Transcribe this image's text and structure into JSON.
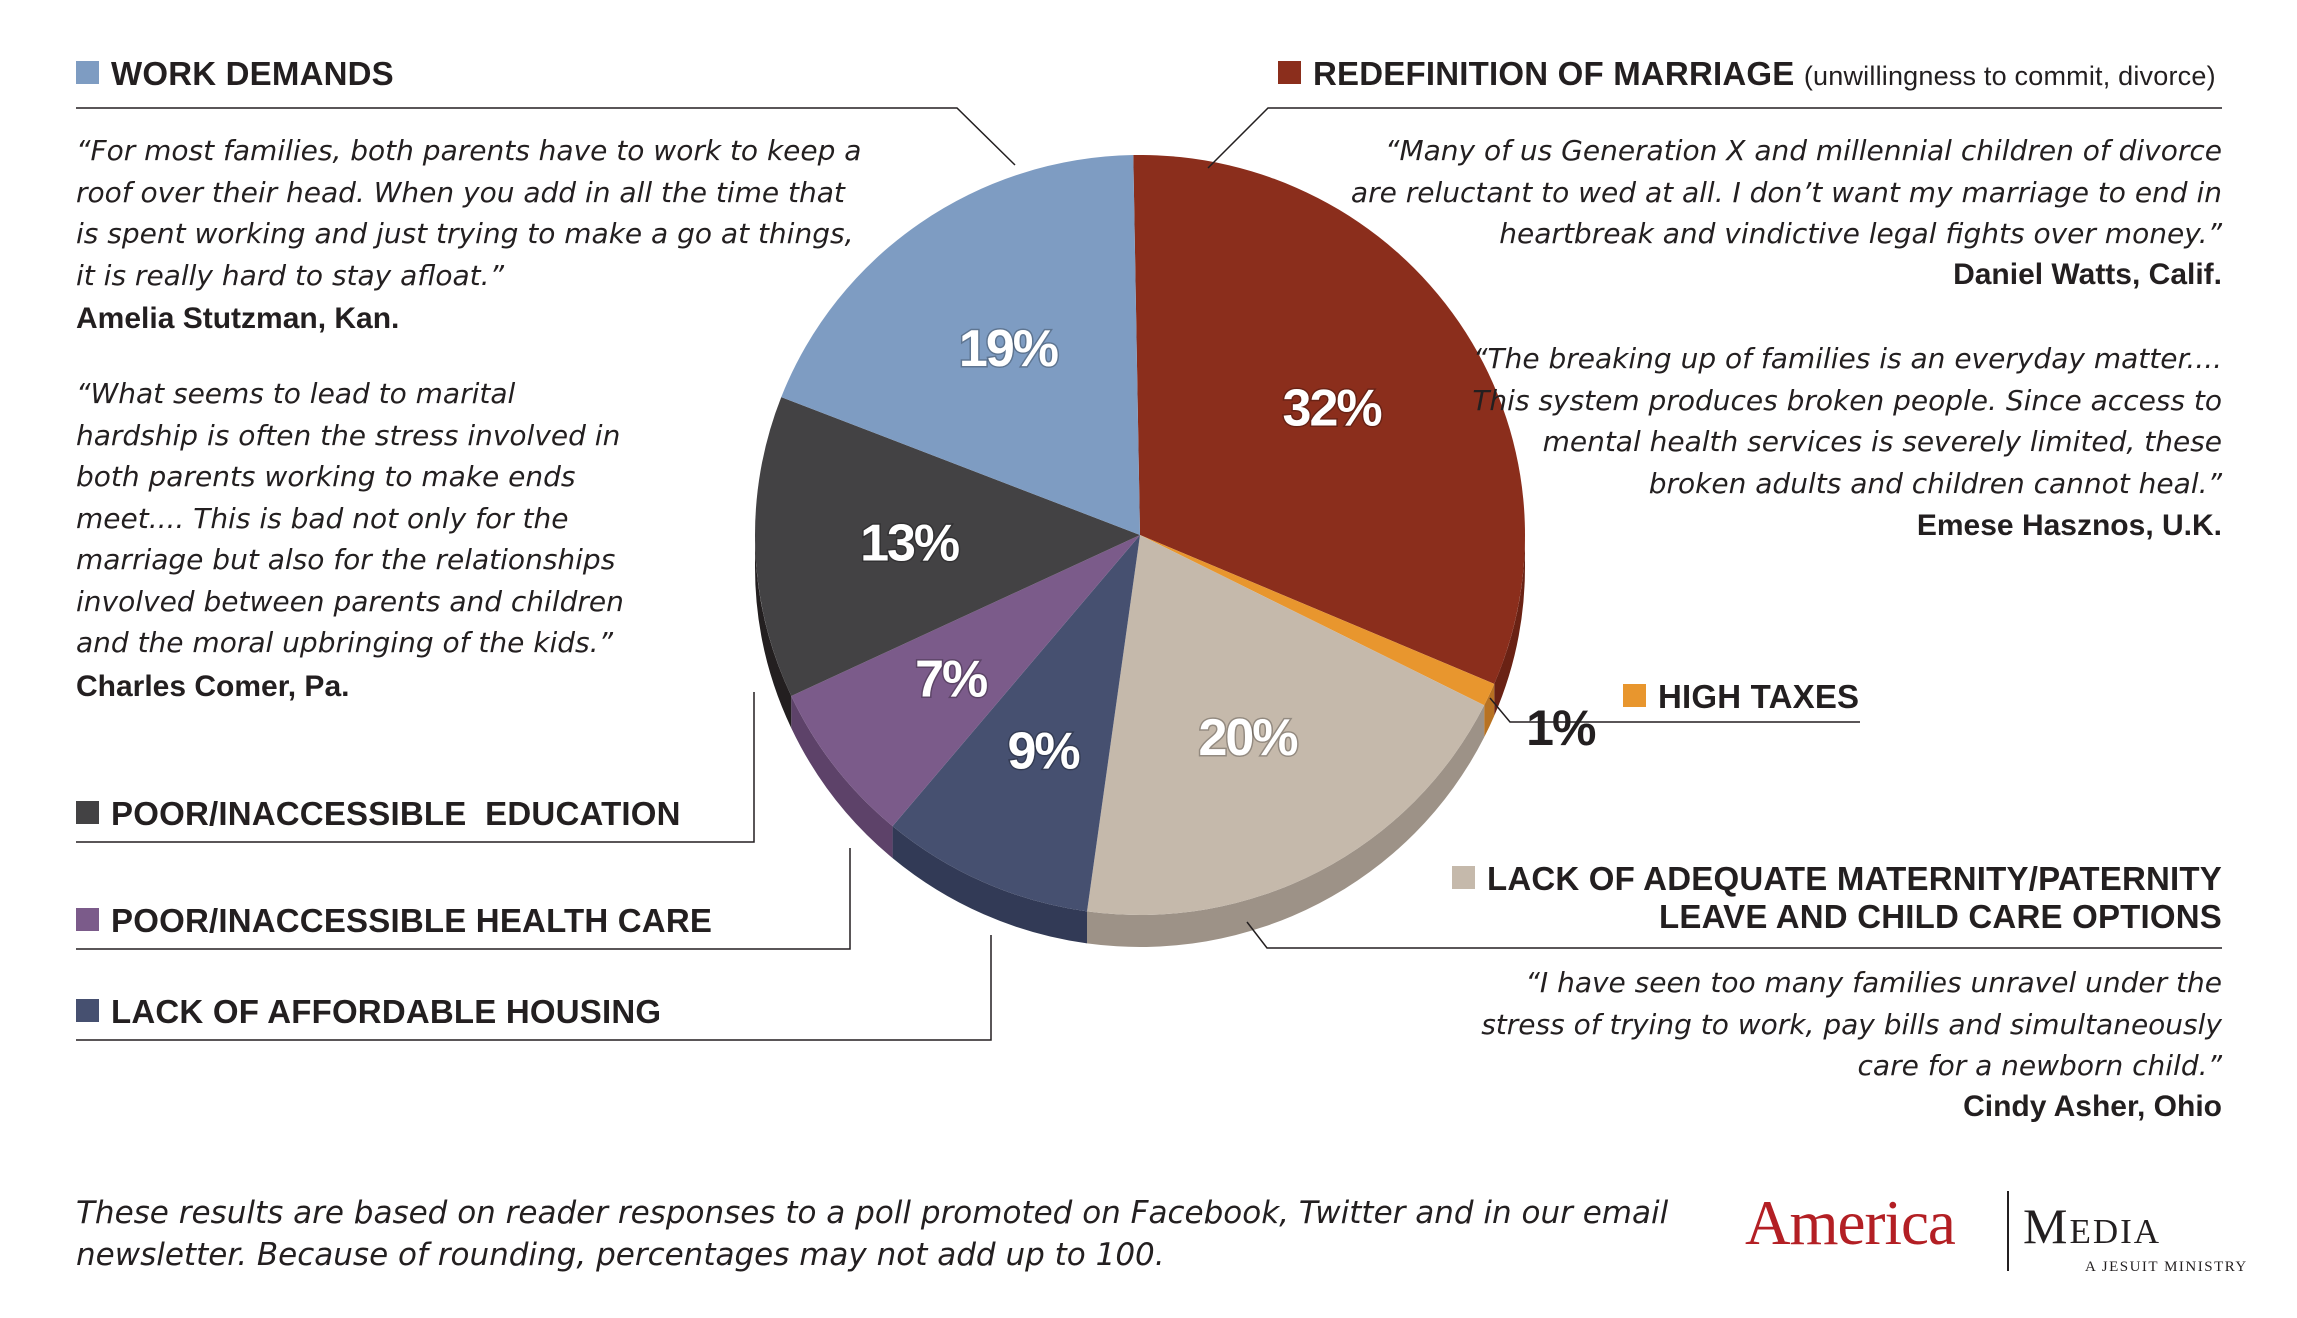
{
  "chart_data": {
    "type": "pie",
    "slices": [
      {
        "key": "redefinition",
        "label": "REDEFINITION OF MARRIAGE",
        "sublabel": "(unwillingness to commit, divorce)",
        "value": 32,
        "value_label": "32%",
        "color": "#8b2e1c",
        "side_color": "#6a2214"
      },
      {
        "key": "taxes",
        "label": "HIGH TAXES",
        "value": 1,
        "value_label": "1%",
        "color": "#e8962e",
        "side_color": "#b87222"
      },
      {
        "key": "leave",
        "label_lines": [
          "LACK OF ADEQUATE MATERNITY/PATERNITY",
          "LEAVE AND CHILD CARE OPTIONS"
        ],
        "value": 20,
        "value_label": "20%",
        "color": "#c5b9ab",
        "side_color": "#9d9287"
      },
      {
        "key": "housing",
        "label": "LACK OF AFFORDABLE HOUSING",
        "value": 9,
        "value_label": "9%",
        "color": "#465070",
        "side_color": "#323a56"
      },
      {
        "key": "health",
        "label": "POOR/INACCESSIBLE HEALTH CARE",
        "value": 7,
        "value_label": "7%",
        "color": "#7b5b8a",
        "side_color": "#5d4269"
      },
      {
        "key": "education",
        "label": "POOR/INACCESSIBLE  EDUCATION",
        "value": 13,
        "value_label": "13%",
        "color": "#434244",
        "side_color": "#231f20"
      },
      {
        "key": "work",
        "label": "WORK DEMANDS",
        "value": 19,
        "value_label": "19%",
        "color": "#7e9cc2",
        "side_color": "#5f7ca0"
      }
    ],
    "legend_placement": "around"
  },
  "quotes": {
    "work_1": {
      "text": "“For most families, both parents have to work to keep a roof over their head. When you add in all the time that is spent working and just trying to make a go at things, it is really hard to stay afloat.”",
      "author": "Amelia Stutzman, Kan."
    },
    "work_2": {
      "text": "“What seems to lead to marital hardship is often the stress involved in both parents working to make ends meet.... This is bad not only for the marriage but also for the relationships involved between parents and children and the moral upbringing of the kids.”",
      "author": "Charles Comer, Pa."
    },
    "marriage_1": {
      "text": "“Many of us Generation X and millennial children of divorce are reluctant to wed at all. I don’t want my marriage to end in heartbreak and vindictive legal fights over money.”",
      "author": "Daniel Watts, Calif."
    },
    "marriage_2": {
      "text": "“The breaking up of families is an everyday matter.... This system produces broken people. Since access to mental health services is severely limited, these broken adults and children cannot heal.”",
      "author": "Emese Hasznos, U.K."
    },
    "leave_1": {
      "text": "“I have seen too many families unravel under the stress of trying to work, pay bills and simultaneously care for a newborn child.”",
      "author": "Cindy Asher, Ohio"
    }
  },
  "footnote": "These results are based on reader responses to a poll promoted on Facebook, Twitter and in our email newsletter. Because of rounding, percentages may not add up to 100.",
  "logo": {
    "america": "America",
    "media": "Media",
    "tagline": "A JESUIT MINISTRY"
  }
}
